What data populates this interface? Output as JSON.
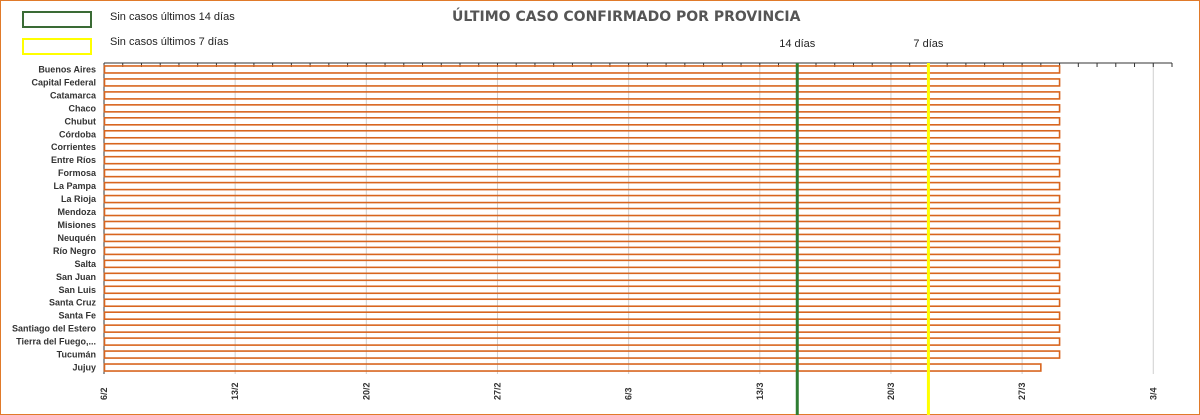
{
  "chart_data": {
    "type": "bar",
    "orientation": "horizontal",
    "title": "ÚLTIMO CASO CONFIRMADO POR PROVINCIA",
    "categories": [
      "Buenos Aires",
      "Capital Federal",
      "Catamarca",
      "Chaco",
      "Chubut",
      "Córdoba",
      "Corrientes",
      "Entre Ríos",
      "Formosa",
      "La Pampa",
      "La Rioja",
      "Mendoza",
      "Misiones",
      "Neuquén",
      "Río Negro",
      "Salta",
      "San Juan",
      "San Luis",
      "Santa Cruz",
      "Santa Fe",
      "Santiago del Estero",
      "Tierra del Fuego,...",
      "Tucumán",
      "Jujuy"
    ],
    "start": "2020-02-06",
    "values": [
      "2020-03-28",
      "2020-03-28",
      "2020-03-28",
      "2020-03-28",
      "2020-03-28",
      "2020-03-28",
      "2020-03-28",
      "2020-03-28",
      "2020-03-28",
      "2020-03-28",
      "2020-03-28",
      "2020-03-28",
      "2020-03-28",
      "2020-03-28",
      "2020-03-28",
      "2020-03-28",
      "2020-03-28",
      "2020-03-28",
      "2020-03-28",
      "2020-03-28",
      "2020-03-28",
      "2020-03-28",
      "2020-03-28",
      "2020-03-27"
    ],
    "xlim": [
      "2020-02-06",
      "2020-04-03"
    ],
    "xticks": [
      "6/2",
      "13/2",
      "20/2",
      "27/2",
      "6/3",
      "13/3",
      "20/3",
      "27/3",
      "3/4"
    ],
    "reference_lines": [
      {
        "label": "14 días",
        "date": "2020-03-14",
        "color": "#2e7d32"
      },
      {
        "label": "7 días",
        "date": "2020-03-21",
        "color": "#ffff00"
      }
    ],
    "legend": [
      {
        "label": "Sin casos últimos 14 días",
        "color": "#3a6b35"
      },
      {
        "label": "Sin casos últimos 7 días",
        "color": "#ffff00"
      }
    ],
    "bar_color": "#d8651e",
    "grid": true
  }
}
